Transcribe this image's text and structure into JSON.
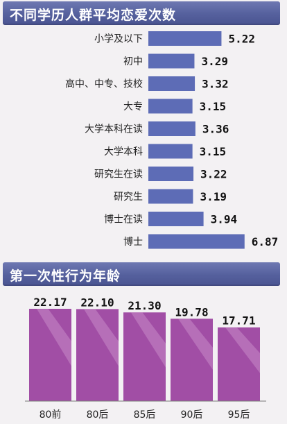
{
  "titles": {
    "chart1": "不同学历人群平均恋爱次数",
    "chart2": "第一次性行为年龄"
  },
  "colors": {
    "title_bg": "#5a64a2",
    "bar_fill": "#5d6cb6",
    "column_fill": "#a14ea5",
    "column_highlight": "#c98ac9",
    "background": "#f3f1f3"
  },
  "chart_data": [
    {
      "type": "bar",
      "orientation": "horizontal",
      "title": "不同学历人群平均恋爱次数",
      "categories": [
        "小学及以下",
        "初中",
        "高中、中专、技校",
        "大专",
        "大学本科在读",
        "大学本科",
        "研究生在读",
        "研究生",
        "博士在读",
        "博士"
      ],
      "values": [
        5.22,
        3.29,
        3.32,
        3.15,
        3.36,
        3.15,
        3.22,
        3.19,
        3.94,
        6.87
      ],
      "value_labels": [
        "5.22",
        "3.29",
        "3.32",
        "3.15",
        "3.36",
        "3.15",
        "3.22",
        "3.19",
        "3.94",
        "6.87"
      ],
      "xlabel": "",
      "ylabel": "",
      "grid": false
    },
    {
      "type": "bar",
      "orientation": "vertical",
      "title": "第一次性行为年龄",
      "categories": [
        "80前",
        "80后",
        "85后",
        "90后",
        "95后"
      ],
      "values": [
        22.17,
        22.1,
        21.3,
        19.78,
        17.71
      ],
      "value_labels": [
        "22.17",
        "22.10",
        "21.30",
        "19.78",
        "17.71"
      ],
      "xlabel": "",
      "ylabel": "",
      "grid": false
    }
  ]
}
